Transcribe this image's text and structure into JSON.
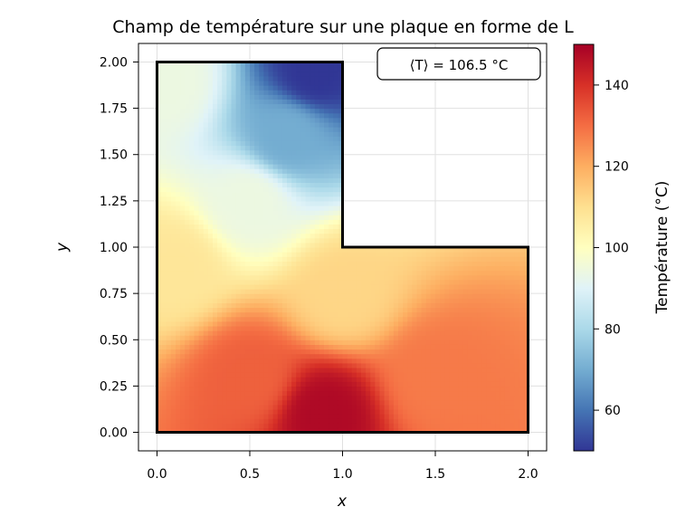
{
  "chart_data": {
    "type": "heatmap",
    "title": "Champ de température sur une plaque en forme de L",
    "xlabel": "x",
    "ylabel": "y",
    "xlim": [
      -0.1,
      2.1
    ],
    "ylim": [
      -0.1,
      2.1
    ],
    "x_ticks": [
      "0.0",
      "0.5",
      "1.0",
      "1.5",
      "2.0"
    ],
    "x_tick_values": [
      0.0,
      0.5,
      1.0,
      1.5,
      2.0
    ],
    "y_ticks": [
      "0.00",
      "0.25",
      "0.50",
      "0.75",
      "1.00",
      "1.25",
      "1.50",
      "1.75",
      "2.00"
    ],
    "y_tick_values": [
      0.0,
      0.25,
      0.5,
      0.75,
      1.0,
      1.25,
      1.5,
      1.75,
      2.0
    ],
    "grid": true,
    "colormap": "RdYlBu_r",
    "colorbar": {
      "label": "Température (°C)",
      "range": [
        50,
        150
      ],
      "ticks": [
        "60",
        "80",
        "100",
        "120",
        "140"
      ],
      "tick_values": [
        60,
        80,
        100,
        120,
        140
      ]
    },
    "domain_outline": [
      [
        0,
        0
      ],
      [
        2,
        0
      ],
      [
        2,
        1
      ],
      [
        1,
        1
      ],
      [
        1,
        2
      ],
      [
        0,
        2
      ],
      [
        0,
        0
      ]
    ],
    "temperature_samples": [
      {
        "x": 0.9,
        "y": 0.1,
        "T": 148
      },
      {
        "x": 0.5,
        "y": 0.3,
        "T": 132
      },
      {
        "x": 1.5,
        "y": 0.3,
        "T": 128
      },
      {
        "x": 1.0,
        "y": 0.75,
        "T": 112
      },
      {
        "x": 0.1,
        "y": 0.9,
        "T": 108
      },
      {
        "x": 0.5,
        "y": 1.25,
        "T": 94
      },
      {
        "x": 0.7,
        "y": 1.6,
        "T": 70
      },
      {
        "x": 0.85,
        "y": 1.95,
        "T": 50
      },
      {
        "x": 0.05,
        "y": 1.9,
        "T": 94
      }
    ],
    "annotation": "⟨T⟩ = 106.5 °C"
  }
}
